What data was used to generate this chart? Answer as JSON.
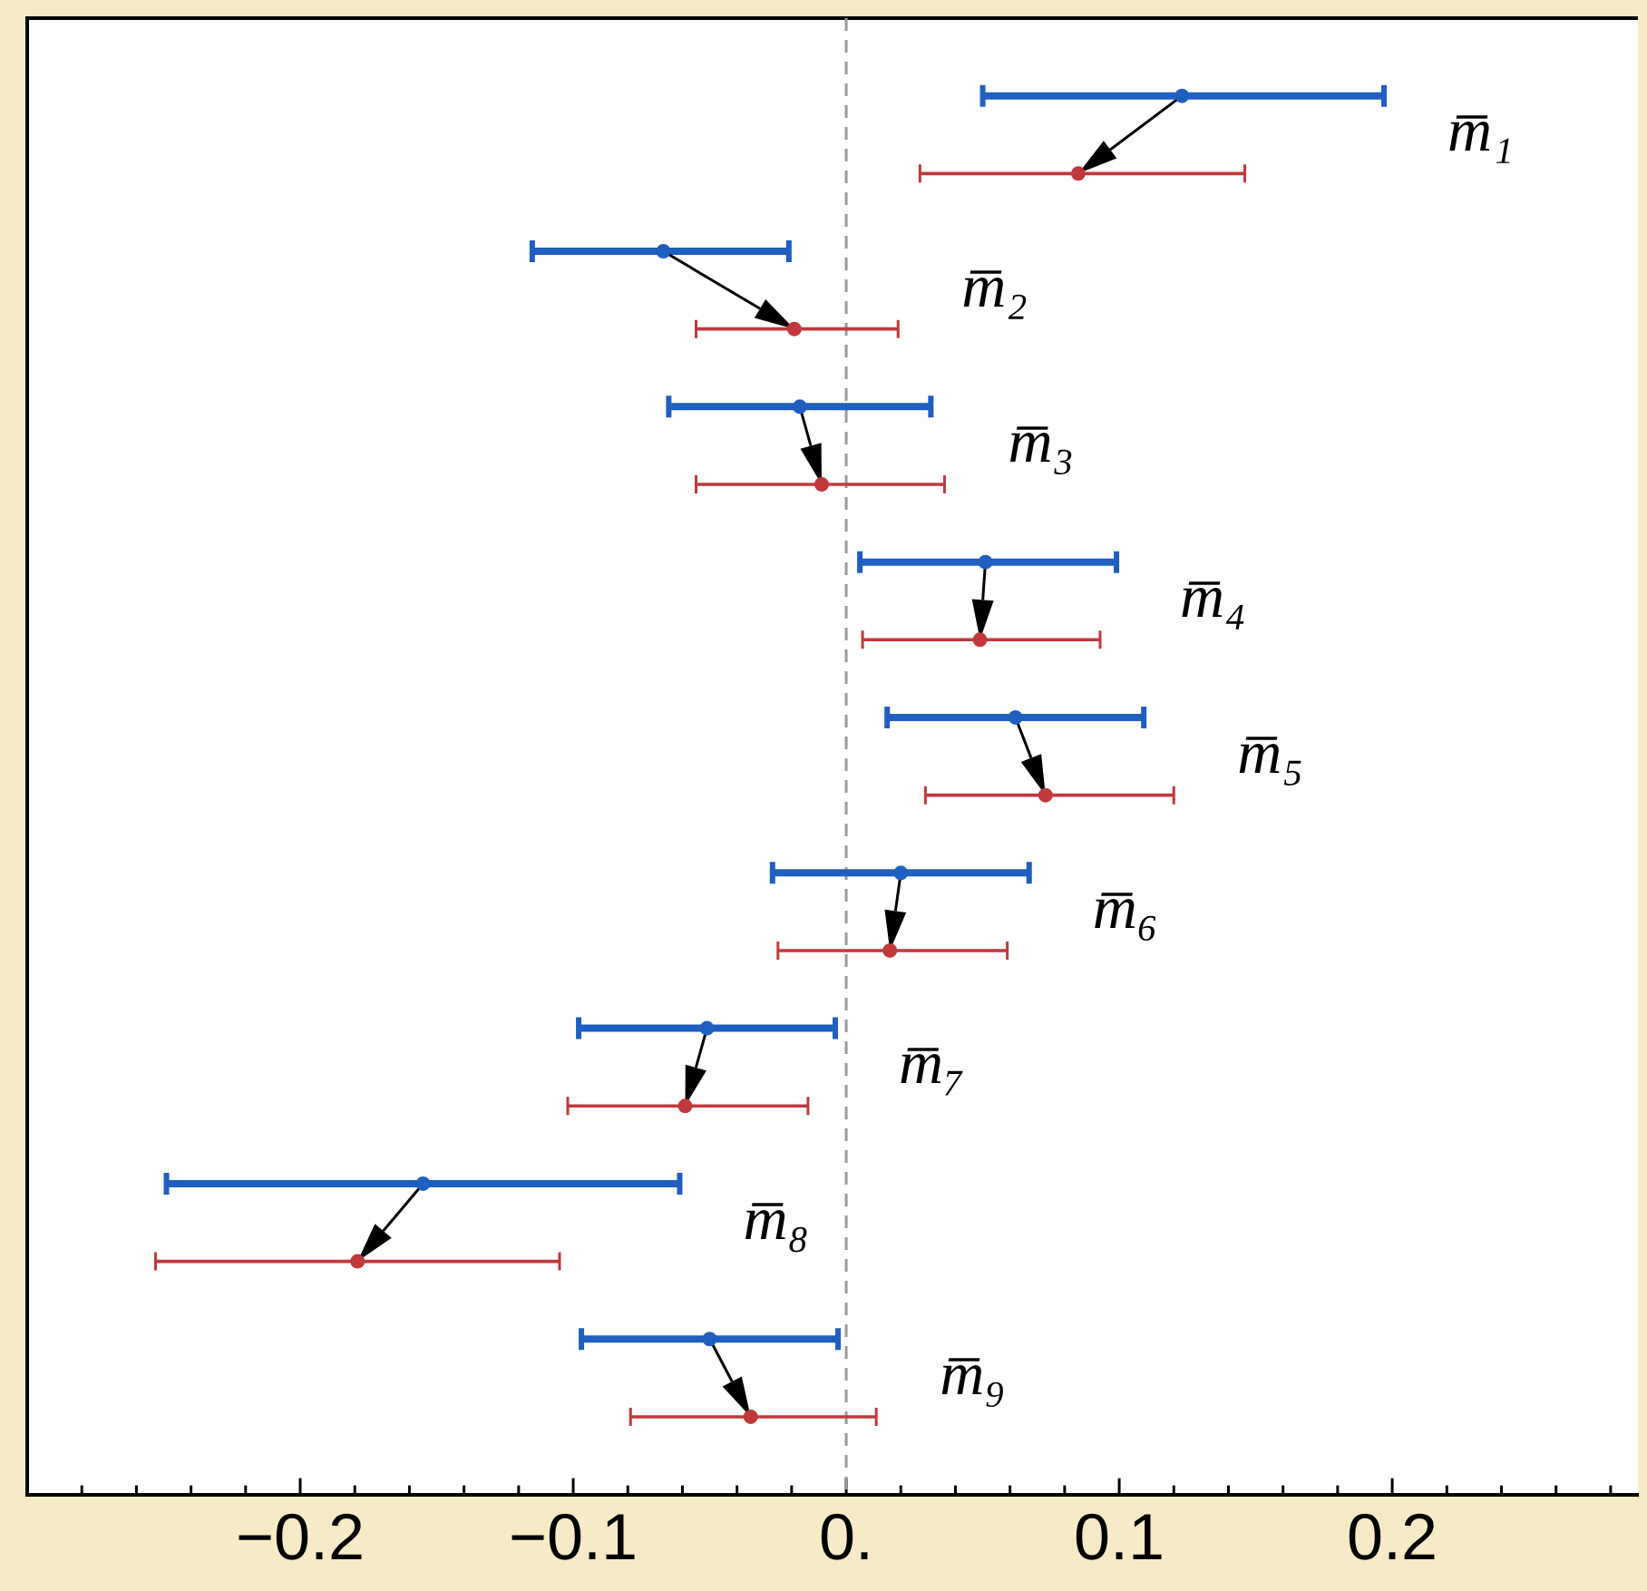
{
  "chart_data": {
    "type": "scatter",
    "orientation": "horizontal",
    "categories": [
      null,
      null,
      null,
      null,
      null,
      null,
      null,
      null,
      null
    ],
    "series": [
      {
        "color": "#1f5fbf",
        "values": [
          0.123,
          -0.067,
          -0.017,
          0.051,
          0.062,
          0.02,
          -0.051,
          -0.155,
          -0.05
        ],
        "errors": [
          [
            0.05,
            0.197
          ],
          [
            -0.115,
            -0.021
          ],
          [
            -0.065,
            0.031
          ],
          [
            0.005,
            0.099
          ],
          [
            0.015,
            0.109
          ],
          [
            -0.027,
            0.067
          ],
          [
            -0.098,
            -0.004
          ],
          [
            -0.249,
            -0.061
          ],
          [
            -0.097,
            -0.003
          ]
        ]
      },
      {
        "color": "#c0393b",
        "values": [
          0.085,
          -0.019,
          -0.009,
          0.049,
          0.073,
          0.016,
          -0.059,
          -0.179,
          -0.035
        ],
        "errors": [
          [
            0.027,
            0.146
          ],
          [
            -0.055,
            0.019
          ],
          [
            -0.055,
            0.036
          ],
          [
            0.006,
            0.093
          ],
          [
            0.029,
            0.12
          ],
          [
            -0.025,
            0.059
          ],
          [
            -0.102,
            -0.014
          ],
          [
            -0.253,
            -0.105
          ],
          [
            -0.079,
            0.011
          ]
        ]
      }
    ],
    "annotations": [
      "m̅₁",
      "m̅₂",
      "m̅₃",
      "m̅₄",
      "m̅₅",
      "m̅₆",
      "m̅₇",
      "m̅₈",
      "m̅₉"
    ],
    "xlim": [
      -0.3,
      0.29
    ],
    "xticks": [
      {
        "value": -0.28,
        "label": null
      },
      {
        "value": -0.26,
        "label": null
      },
      {
        "value": -0.24,
        "label": null
      },
      {
        "value": -0.22,
        "label": null
      },
      {
        "value": -0.2,
        "label": "−0.2"
      },
      {
        "value": -0.18,
        "label": null
      },
      {
        "value": -0.16,
        "label": null
      },
      {
        "value": -0.14,
        "label": null
      },
      {
        "value": -0.12,
        "label": null
      },
      {
        "value": -0.1,
        "label": "−0.1"
      },
      {
        "value": -0.08,
        "label": null
      },
      {
        "value": -0.06,
        "label": null
      },
      {
        "value": -0.04,
        "label": null
      },
      {
        "value": -0.02,
        "label": null
      },
      {
        "value": 0,
        "label": "0."
      },
      {
        "value": 0.02,
        "label": null
      },
      {
        "value": 0.04,
        "label": null
      },
      {
        "value": 0.06,
        "label": null
      },
      {
        "value": 0.08,
        "label": null
      },
      {
        "value": 0.1,
        "label": "0.1"
      },
      {
        "value": 0.12,
        "label": null
      },
      {
        "value": 0.14,
        "label": null
      },
      {
        "value": 0.16,
        "label": null
      },
      {
        "value": 0.18,
        "label": null
      },
      {
        "value": 0.2,
        "label": "0.2"
      },
      {
        "value": 0.22,
        "label": null
      },
      {
        "value": 0.24,
        "label": null
      },
      {
        "value": 0.26,
        "label": null
      },
      {
        "value": 0.28,
        "label": null
      }
    ],
    "ref_lines": [
      {
        "axis": "x",
        "value": 0,
        "color": "#9a9a9a",
        "line_style": "dashed"
      }
    ],
    "tick_labels": "x",
    "marker": "circle"
  }
}
